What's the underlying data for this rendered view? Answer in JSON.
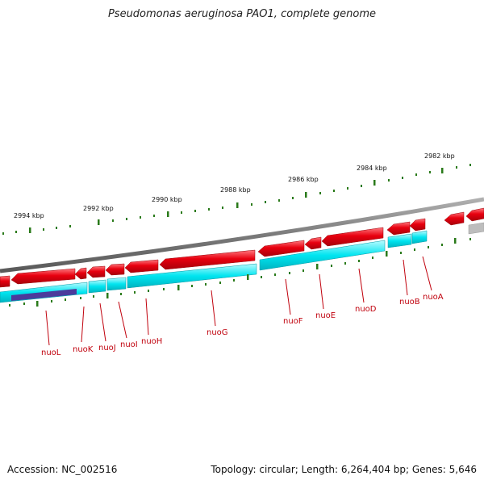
{
  "title": "Pseudomonas aeruginosa PAO1, complete genome",
  "accession": "Accession: NC_002516",
  "topology": "Topology: circular; Length: 6,264,404 bp; Genes: 5,646",
  "colors": {
    "backbone": "#8a8a8a",
    "forward_feature": "#e8000f",
    "cds_band": "#00e5f0",
    "highlight_band": "#4b3b9c",
    "tick": "#2a7a1a",
    "label": "#c0000c",
    "reverse_grey": "#bdbdbd"
  },
  "kbp_labels": [
    "2994 kbp",
    "2992 kbp",
    "2990 kbp",
    "2988 kbp",
    "2986 kbp",
    "2984 kbp",
    "2982 kbp"
  ],
  "genes": [
    "nuoL",
    "nuoK",
    "nuoJ",
    "nuoI",
    "nuoH",
    "nuoG",
    "nuoF",
    "nuoE",
    "nuoD",
    "nuoB",
    "nuoA"
  ]
}
